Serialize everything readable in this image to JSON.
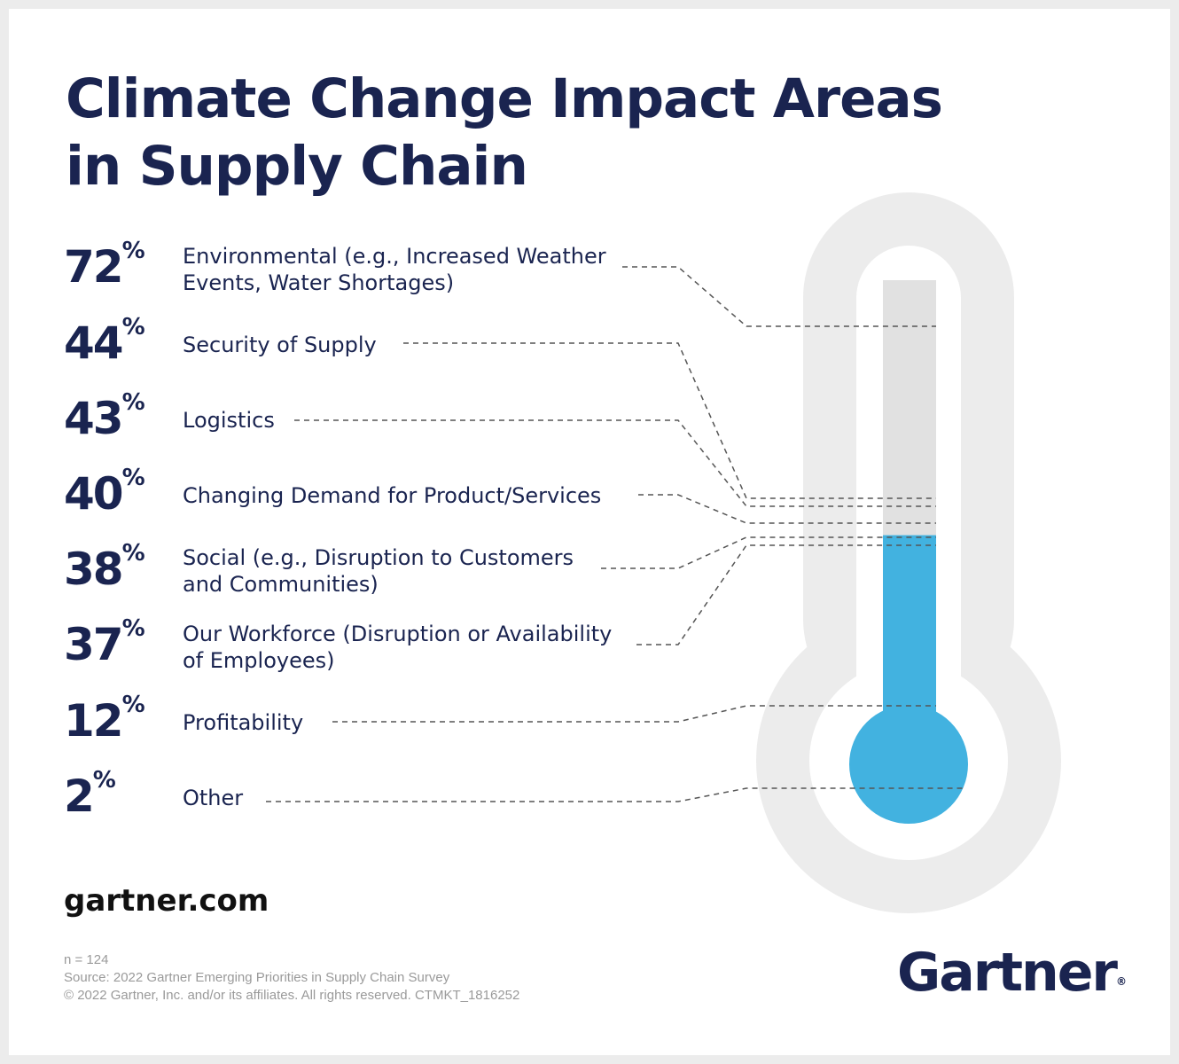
{
  "chart_data": {
    "type": "bar",
    "title": "Climate Change Impact Areas in Supply Chain",
    "orientation": "thermometer",
    "unit": "%",
    "categories": [
      "Environmental (e.g., Increased Weather Events, Water Shortages)",
      "Security of Supply",
      "Logistics",
      "Changing Demand for Product/Services",
      "Social (e.g., Disruption to Customers and Communities)",
      "Our Workforce (Disruption or Availability of Employees)",
      "Profitability",
      "Other"
    ],
    "values": [
      72,
      44,
      43,
      40,
      38,
      37,
      12,
      2
    ],
    "ylim": [
      0,
      100
    ],
    "fill_value": 37,
    "colors": {
      "fill": "#42b2e0",
      "track": "#e1e1e1",
      "outline": "#ececec",
      "text": "#1a2450",
      "leader": "#555555"
    }
  },
  "items": [
    {
      "pct": "72",
      "line1": "Environmental (e.g., Increased Weather",
      "line2": "Events, Water Shortages)"
    },
    {
      "pct": "44",
      "line1": "Security of Supply",
      "line2": ""
    },
    {
      "pct": "43",
      "line1": "Logistics",
      "line2": ""
    },
    {
      "pct": "40",
      "line1": "Changing Demand for Product/Services",
      "line2": ""
    },
    {
      "pct": "38",
      "line1": "Social (e.g., Disruption to Customers",
      "line2": "and Communities)"
    },
    {
      "pct": "37",
      "line1": "Our Workforce (Disruption or Availability",
      "line2": "of Employees)"
    },
    {
      "pct": "12",
      "line1": "Profitability",
      "line2": ""
    },
    {
      "pct": "2",
      "line1": "Other",
      "line2": ""
    }
  ],
  "percent_sign": "%",
  "title_line1": "Climate Change Impact Areas",
  "title_line2": "in Supply Chain",
  "website": "gartner.com",
  "notes": {
    "n": "n = 124",
    "source": "Source: 2022 Gartner Emerging Priorities in Supply Chain Survey",
    "copyright": "© 2022 Gartner, Inc. and/or its affiliates. All rights reserved. CTMKT_1816252"
  },
  "logo": {
    "text": "Gartner",
    "mark": "®"
  }
}
